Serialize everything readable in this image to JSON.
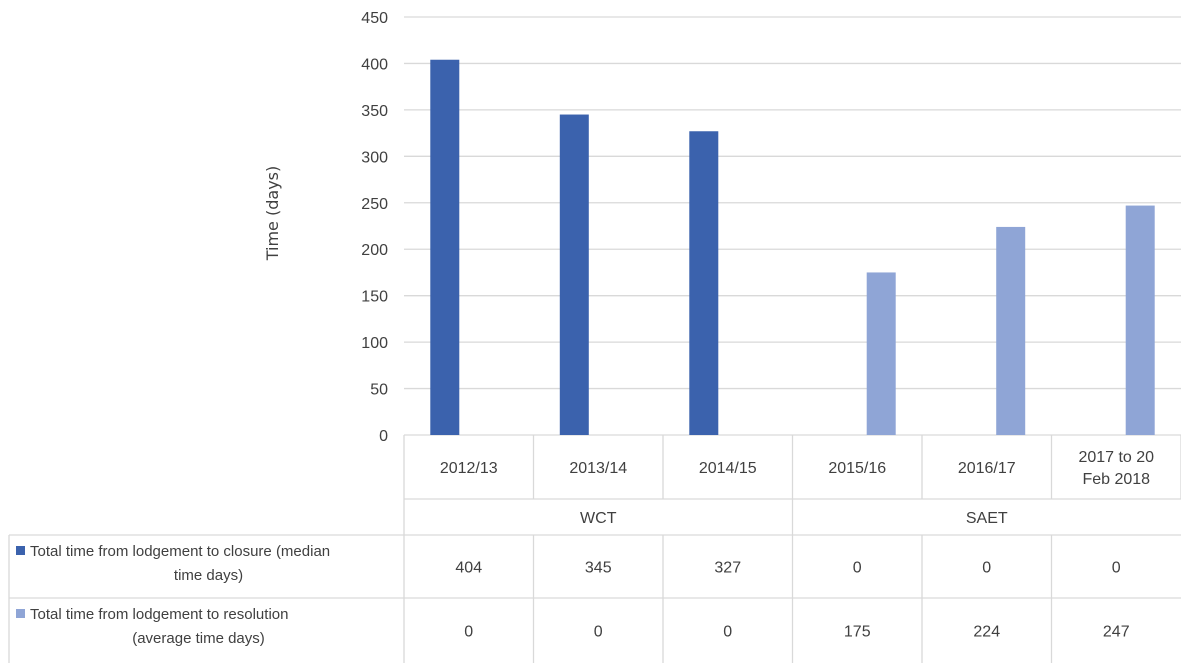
{
  "chart_data": {
    "type": "bar",
    "title": "",
    "xlabel": "",
    "ylabel": "Time (days)",
    "ylim": [
      0,
      450
    ],
    "yticks": [
      0,
      50,
      100,
      150,
      200,
      250,
      300,
      350,
      400,
      450
    ],
    "grid": true,
    "categories": [
      "2012/13",
      "2013/14",
      "2014/15",
      "2015/16",
      "2016/17",
      "2017 to 20 Feb 2018"
    ],
    "category_lines": [
      [
        "2012/13"
      ],
      [
        "2013/14"
      ],
      [
        "2014/15"
      ],
      [
        "2015/16"
      ],
      [
        "2016/17"
      ],
      [
        "2017 to 20",
        "Feb 2018"
      ]
    ],
    "groups": [
      {
        "label": "WCT",
        "categories": [
          "2012/13",
          "2013/14",
          "2014/15"
        ]
      },
      {
        "label": "SAET",
        "categories": [
          "2015/16",
          "2016/17",
          "2017 to 20 Feb 2018"
        ]
      }
    ],
    "legend_placement": "data-table",
    "series": [
      {
        "name": "Total time from lodgement to closure (median time days)",
        "name_lines": [
          "Total time from lodgement to closure (median",
          "time days)"
        ],
        "color": "#3B62AD",
        "values": [
          404,
          345,
          327,
          0,
          0,
          0
        ]
      },
      {
        "name": "Total time from lodgement to resolution (average time days)",
        "name_lines": [
          "Total time from lodgement to resolution",
          "(average time days)"
        ],
        "color": "#8FA5D6",
        "values": [
          0,
          0,
          0,
          175,
          224,
          247
        ]
      }
    ]
  }
}
